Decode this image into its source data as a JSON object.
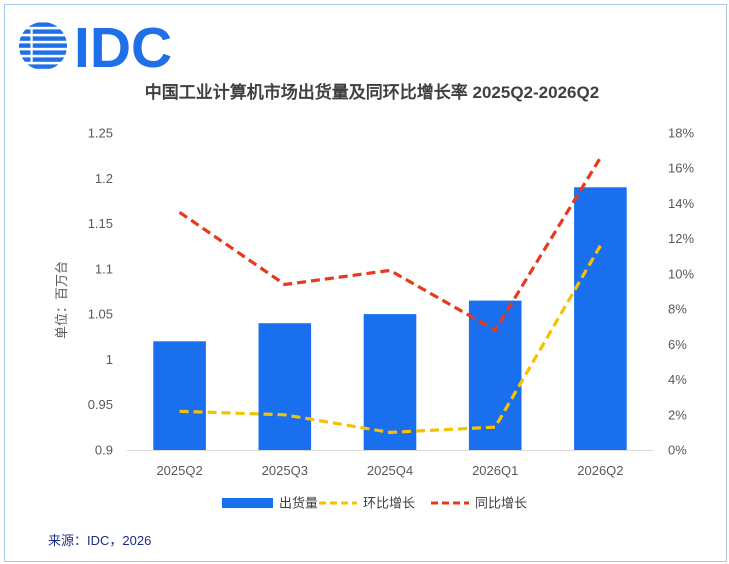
{
  "logo": {
    "text": "IDC",
    "color": "#1f6fe8"
  },
  "chart_data": {
    "type": "bar",
    "title": "中国工业计算机市场出货量及同环比增长率 2025Q2-2026Q2",
    "ylabel": "单位：百万台",
    "categories": [
      "2025Q2",
      "2025Q3",
      "2025Q4",
      "2026Q1",
      "2026Q2"
    ],
    "ylim": [
      0.9,
      1.25
    ],
    "yticks": [
      0.9,
      0.95,
      1,
      1.05,
      1.1,
      1.15,
      1.2,
      1.25
    ],
    "y2lim": [
      0,
      18
    ],
    "y2ticks": [
      0,
      2,
      4,
      6,
      8,
      10,
      12,
      14,
      16,
      18
    ],
    "y2unit": "%",
    "grid": false,
    "legend": "bottom",
    "series": [
      {
        "name": "出货量",
        "type": "bar",
        "axis": "left",
        "color": "#1a6fef",
        "values": [
          1.02,
          1.04,
          1.05,
          1.065,
          1.19
        ]
      },
      {
        "name": "环比增长",
        "type": "line",
        "line_style": "dashed",
        "axis": "right",
        "color": "#f6c100",
        "values": [
          2.2,
          2.0,
          1.0,
          1.3,
          11.6
        ]
      },
      {
        "name": "同比增长",
        "type": "line",
        "line_style": "dashed",
        "axis": "right",
        "color": "#e8391d",
        "values": [
          13.5,
          9.4,
          10.2,
          6.8,
          16.6
        ]
      }
    ]
  },
  "source": "来源：IDC，2026"
}
